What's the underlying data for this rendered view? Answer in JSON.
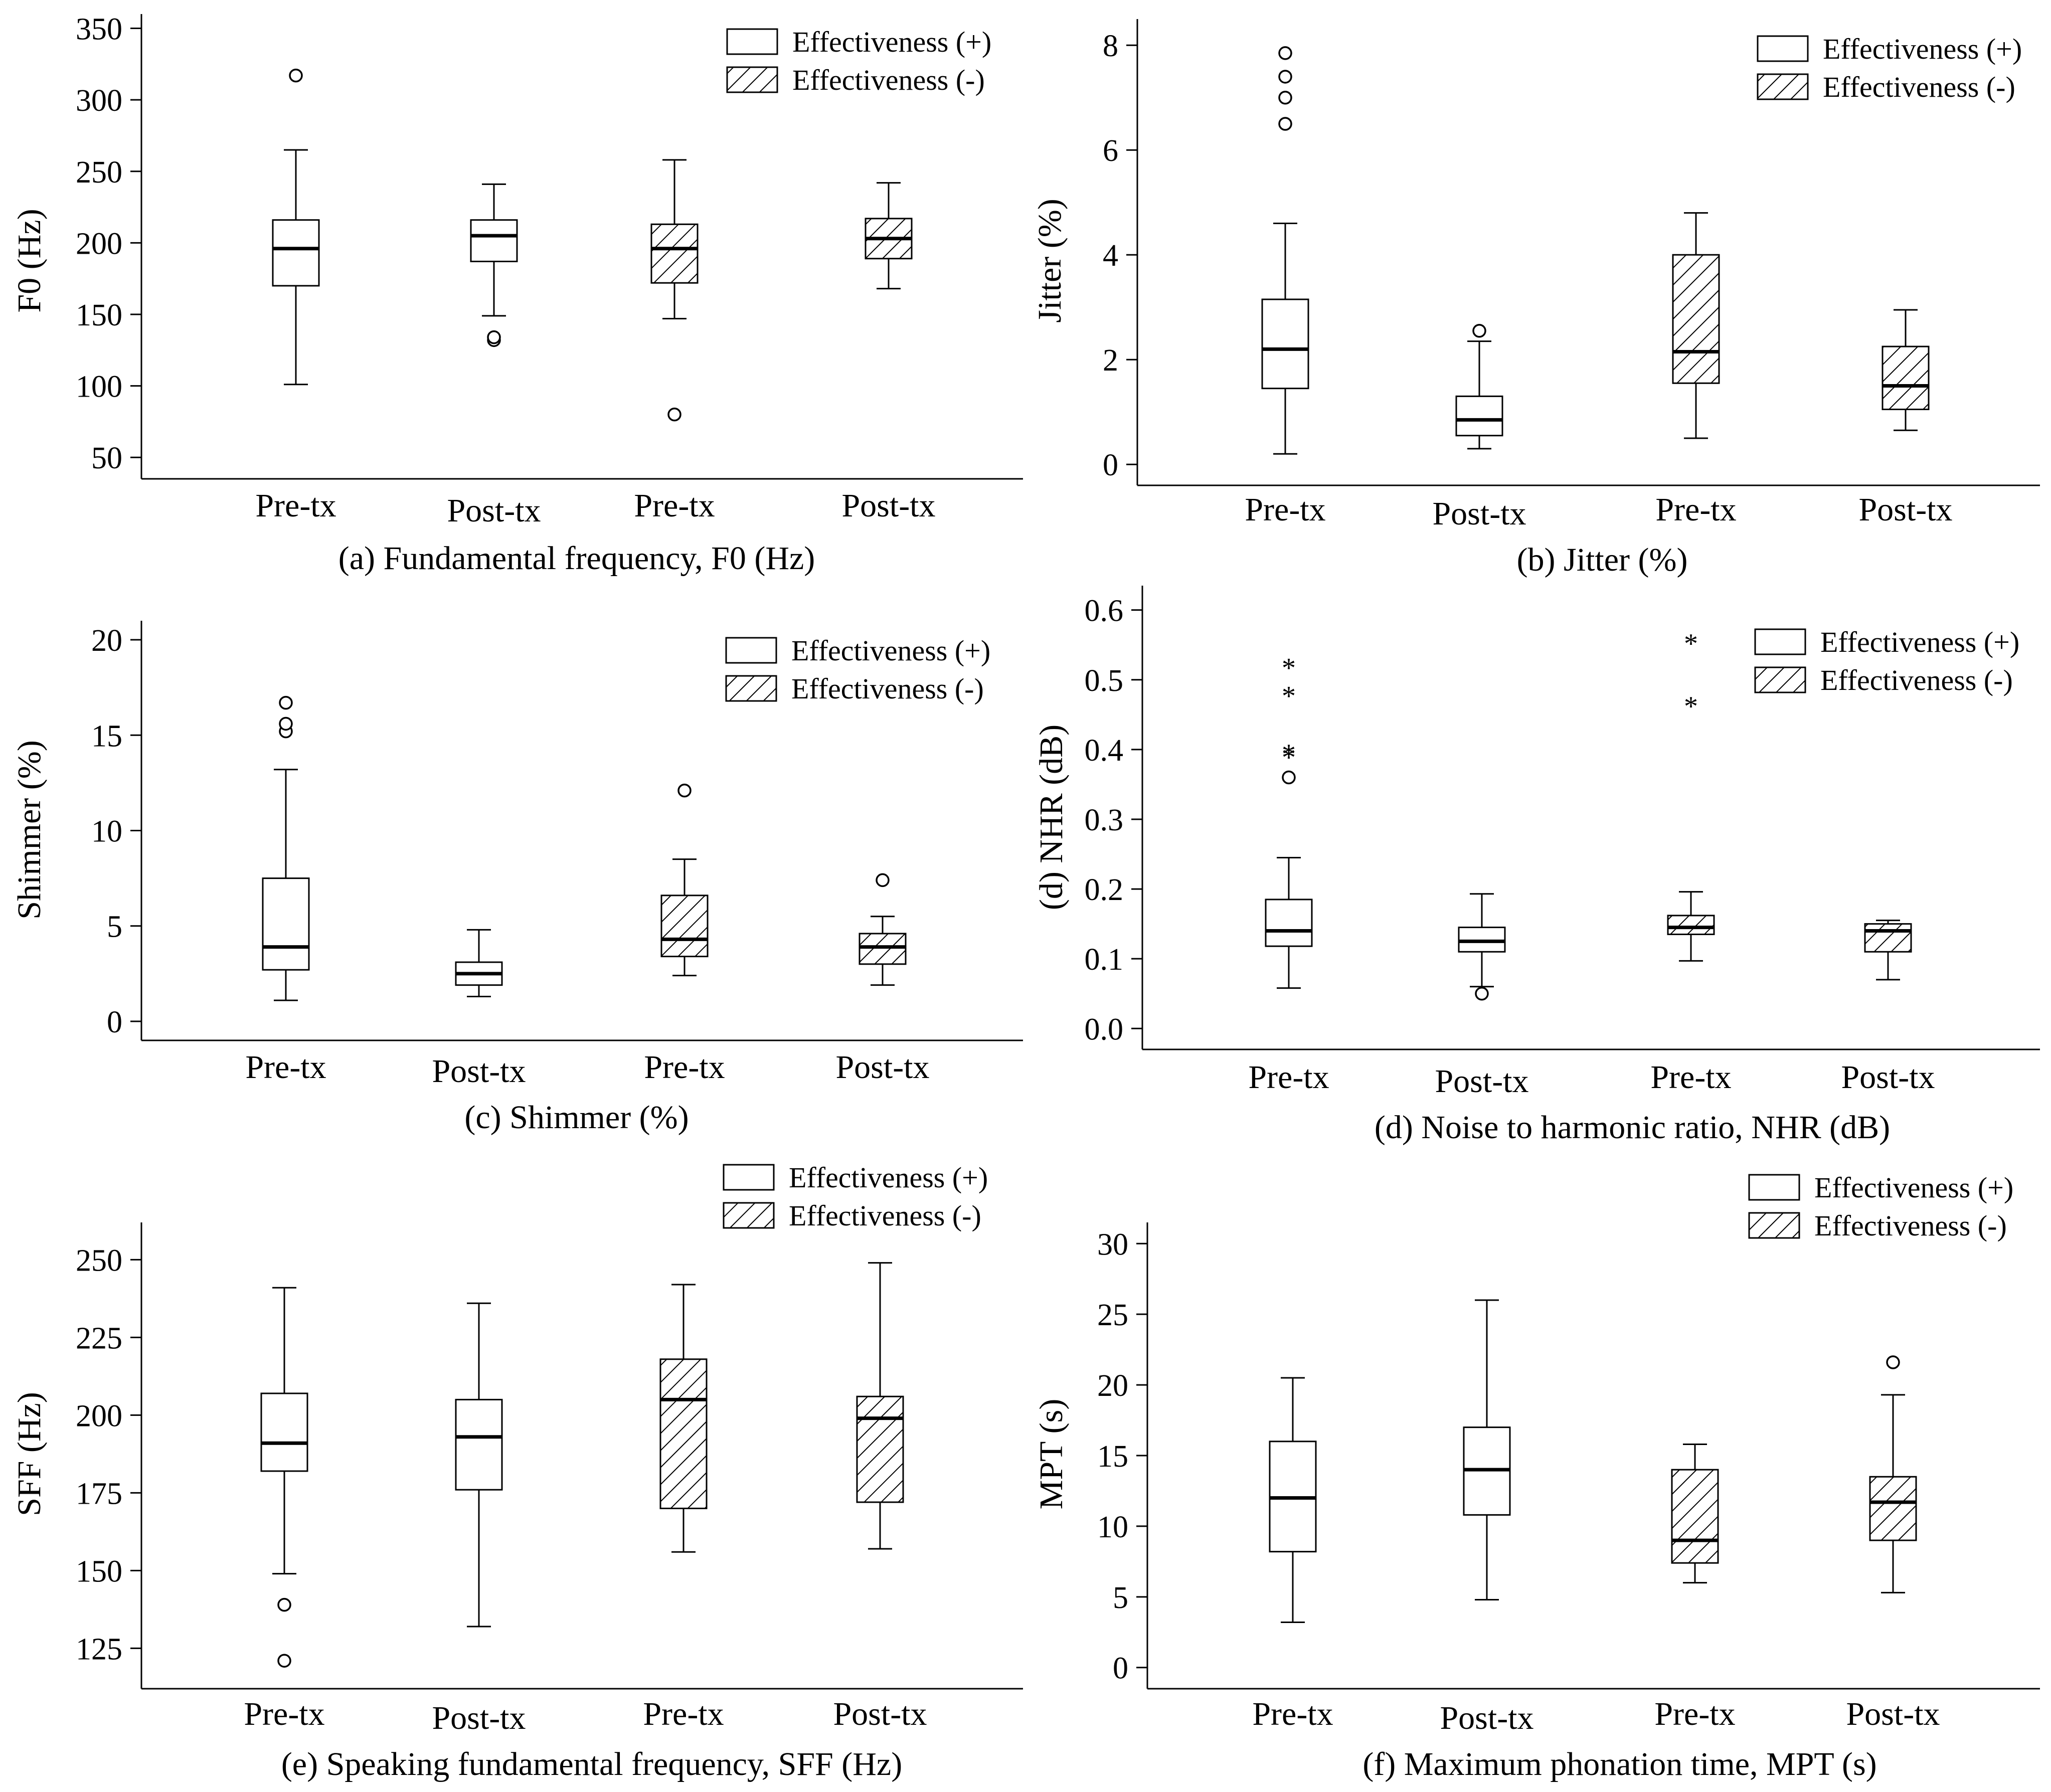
{
  "legend": {
    "positive": "Effectiveness (+)",
    "negative": "Effectiveness (-)"
  },
  "chart_data": [
    {
      "id": "a",
      "type": "box",
      "title": "(a) Fundamental frequency, F0 (Hz)",
      "xlabel": "",
      "ylabel": "F0 (Hz)",
      "ylim": [
        35,
        360
      ],
      "yticks": [
        50,
        100,
        150,
        200,
        250,
        300,
        350
      ],
      "legend_position": "top-right",
      "categories": [
        "Pre-tx",
        "Post-tx",
        "Pre-tx",
        "Post-tx"
      ],
      "boxes": [
        {
          "group": "Effectiveness (+)",
          "min": 101,
          "q1": 170,
          "median": 196,
          "q3": 216,
          "max": 265,
          "outliers": [
            317
          ],
          "extremes": []
        },
        {
          "group": "Effectiveness (+)",
          "min": 149,
          "q1": 187,
          "median": 205,
          "q3": 216,
          "max": 241,
          "outliers": [
            132,
            134
          ],
          "extremes": []
        },
        {
          "group": "Effectiveness (-)",
          "min": 147,
          "q1": 172,
          "median": 196,
          "q3": 213,
          "max": 258,
          "outliers": [
            80
          ],
          "extremes": []
        },
        {
          "group": "Effectiveness (-)",
          "min": 168,
          "q1": 189,
          "median": 203,
          "q3": 217,
          "max": 242,
          "outliers": [],
          "extremes": []
        }
      ]
    },
    {
      "id": "b",
      "type": "box",
      "title": "(b) Jitter (%)",
      "xlabel": "",
      "ylabel": "Jitter (%)",
      "ylim": [
        -0.4,
        8.5
      ],
      "yticks": [
        0,
        2,
        4,
        6,
        8
      ],
      "legend_position": "top-right",
      "categories": [
        "Pre-tx",
        "Post-tx",
        "Pre-tx",
        "Post-tx"
      ],
      "boxes": [
        {
          "group": "Effectiveness (+)",
          "min": 0.2,
          "q1": 1.45,
          "median": 2.2,
          "q3": 3.15,
          "max": 4.6,
          "outliers": [
            6.5,
            7.0,
            7.4,
            7.85
          ],
          "extremes": []
        },
        {
          "group": "Effectiveness (+)",
          "min": 0.3,
          "q1": 0.55,
          "median": 0.85,
          "q3": 1.3,
          "max": 2.35,
          "outliers": [
            2.55
          ],
          "extremes": []
        },
        {
          "group": "Effectiveness (-)",
          "min": 0.5,
          "q1": 1.55,
          "median": 2.15,
          "q3": 4.0,
          "max": 4.8,
          "outliers": [],
          "extremes": []
        },
        {
          "group": "Effectiveness (-)",
          "min": 0.65,
          "q1": 1.05,
          "median": 1.5,
          "q3": 2.25,
          "max": 2.95,
          "outliers": [],
          "extremes": []
        }
      ]
    },
    {
      "id": "c",
      "type": "box",
      "title": "(c) Shimmer (%)",
      "xlabel": "",
      "ylabel": "Shimmer (%)",
      "ylim": [
        -1,
        21
      ],
      "yticks": [
        0,
        5,
        10,
        15,
        20
      ],
      "legend_position": "top-right",
      "categories": [
        "Pre-tx",
        "Post-tx",
        "Pre-tx",
        "Post-tx"
      ],
      "boxes": [
        {
          "group": "Effectiveness (+)",
          "min": 1.1,
          "q1": 2.7,
          "median": 3.9,
          "q3": 7.5,
          "max": 13.2,
          "outliers": [
            15.2,
            15.6,
            16.7
          ],
          "extremes": []
        },
        {
          "group": "Effectiveness (+)",
          "min": 1.3,
          "q1": 1.9,
          "median": 2.5,
          "q3": 3.1,
          "max": 4.8,
          "outliers": [],
          "extremes": []
        },
        {
          "group": "Effectiveness (-)",
          "min": 2.4,
          "q1": 3.4,
          "median": 4.3,
          "q3": 6.6,
          "max": 8.5,
          "outliers": [
            12.1
          ],
          "extremes": []
        },
        {
          "group": "Effectiveness (-)",
          "min": 1.9,
          "q1": 3.0,
          "median": 3.9,
          "q3": 4.6,
          "max": 5.5,
          "outliers": [
            7.4
          ],
          "extremes": []
        }
      ]
    },
    {
      "id": "d",
      "type": "box",
      "title": "(d) Noise to harmonic ratio, NHR (dB)",
      "xlabel": "",
      "ylabel": "(d) NHR (dB)",
      "ylim": [
        -0.03,
        0.635
      ],
      "yticks": [
        0.0,
        0.1,
        0.2,
        0.3,
        0.4,
        0.5,
        0.6
      ],
      "ytick_labels": [
        "0.0",
        "0.1",
        "0.2",
        "0.3",
        "0.4",
        "0.5",
        "0.6"
      ],
      "legend_position": "top-right",
      "categories": [
        "Pre-tx",
        "Post-tx",
        "Pre-tx",
        "Post-tx"
      ],
      "boxes": [
        {
          "group": "Effectiveness (+)",
          "min": 0.058,
          "q1": 0.118,
          "median": 0.14,
          "q3": 0.185,
          "max": 0.245,
          "outliers": [
            0.36
          ],
          "extremes": [
            0.39,
            0.395,
            0.478,
            0.518
          ]
        },
        {
          "group": "Effectiveness (+)",
          "min": 0.06,
          "q1": 0.11,
          "median": 0.125,
          "q3": 0.145,
          "max": 0.193,
          "outliers": [
            0.05
          ],
          "extremes": []
        },
        {
          "group": "Effectiveness (-)",
          "min": 0.097,
          "q1": 0.135,
          "median": 0.145,
          "q3": 0.162,
          "max": 0.196,
          "outliers": [],
          "extremes": [
            0.463,
            0.553
          ]
        },
        {
          "group": "Effectiveness (-)",
          "min": 0.07,
          "q1": 0.11,
          "median": 0.14,
          "q3": 0.15,
          "max": 0.155,
          "outliers": [],
          "extremes": []
        }
      ]
    },
    {
      "id": "e",
      "type": "box",
      "title": "(e) Speaking fundamental frequency, SFF (Hz)",
      "xlabel": "",
      "ylabel": "SFF (Hz)",
      "ylim": [
        112,
        262
      ],
      "yticks": [
        125,
        150,
        175,
        200,
        225,
        250
      ],
      "legend_position": "top-right",
      "categories": [
        "Pre-tx",
        "Post-tx",
        "Pre-tx",
        "Post-tx"
      ],
      "boxes": [
        {
          "group": "Effectiveness (+)",
          "min": 149,
          "q1": 182,
          "median": 191,
          "q3": 207,
          "max": 241,
          "outliers": [
            121,
            139
          ],
          "extremes": []
        },
        {
          "group": "Effectiveness (+)",
          "min": 132,
          "q1": 176,
          "median": 193,
          "q3": 205,
          "max": 236,
          "outliers": [],
          "extremes": []
        },
        {
          "group": "Effectiveness (-)",
          "min": 156,
          "q1": 170,
          "median": 205,
          "q3": 218,
          "max": 242,
          "outliers": [],
          "extremes": []
        },
        {
          "group": "Effectiveness (-)",
          "min": 157,
          "q1": 172,
          "median": 199,
          "q3": 206,
          "max": 249,
          "outliers": [],
          "extremes": []
        }
      ]
    },
    {
      "id": "f",
      "type": "box",
      "title": "(f) Maximum phonation time, MPT (s)",
      "xlabel": "",
      "ylabel": "MPT (s)",
      "ylim": [
        -1.5,
        31.5
      ],
      "yticks": [
        0,
        5,
        10,
        15,
        20,
        25,
        30
      ],
      "legend_position": "top-right",
      "categories": [
        "Pre-tx",
        "Post-tx",
        "Pre-tx",
        "Post-tx"
      ],
      "boxes": [
        {
          "group": "Effectiveness (+)",
          "min": 3.2,
          "q1": 8.2,
          "median": 12.0,
          "q3": 16.0,
          "max": 20.5,
          "outliers": [],
          "extremes": []
        },
        {
          "group": "Effectiveness (+)",
          "min": 4.8,
          "q1": 10.8,
          "median": 14.0,
          "q3": 17.0,
          "max": 26.0,
          "outliers": [],
          "extremes": []
        },
        {
          "group": "Effectiveness (-)",
          "min": 6.0,
          "q1": 7.4,
          "median": 9.0,
          "q3": 14.0,
          "max": 15.8,
          "outliers": [],
          "extremes": []
        },
        {
          "group": "Effectiveness (-)",
          "min": 5.3,
          "q1": 9.0,
          "median": 11.7,
          "q3": 13.5,
          "max": 19.3,
          "outliers": [
            21.6
          ],
          "extremes": []
        }
      ]
    }
  ]
}
